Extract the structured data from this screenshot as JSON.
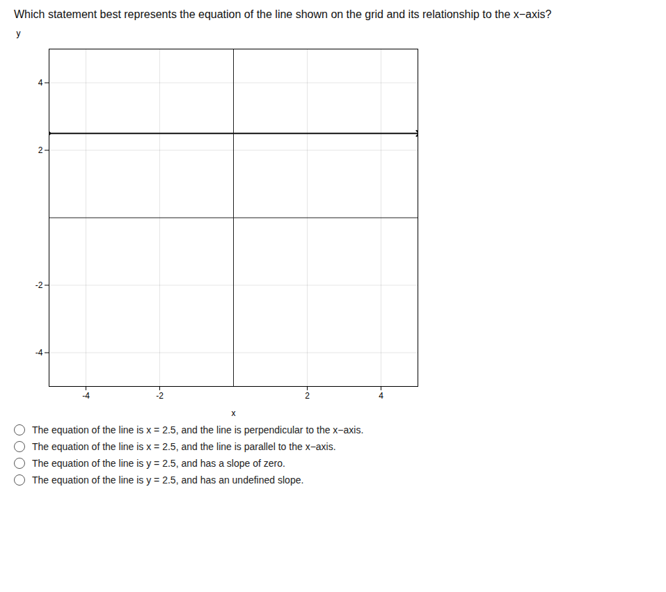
{
  "chart_data": {
    "type": "line",
    "title": "Which statement best represents the equation of the line shown on the grid and its relationship to the x−axis?",
    "xlabel": "x",
    "ylabel": "y",
    "x": [
      -5,
      5
    ],
    "values": [
      2.5,
      2.5
    ],
    "color": "#111111",
    "marker": "arrow",
    "xlim": [
      -5,
      5
    ],
    "ylim": [
      -5,
      5
    ],
    "xticks": [
      -4,
      -2,
      2,
      4
    ],
    "yticks": [
      -4,
      -2,
      2,
      4
    ],
    "grid": true,
    "annotations": [
      "The equation of the line is x = 2.5, and the line is perpendicular to the x−axis.",
      "The equation of the line is x = 2.5, and the line is parallel to the x−axis.",
      "The equation of the line is y = 2.5, and has a slope of zero.",
      "The equation of the line is y = 2.5, and has an undefined slope."
    ]
  }
}
